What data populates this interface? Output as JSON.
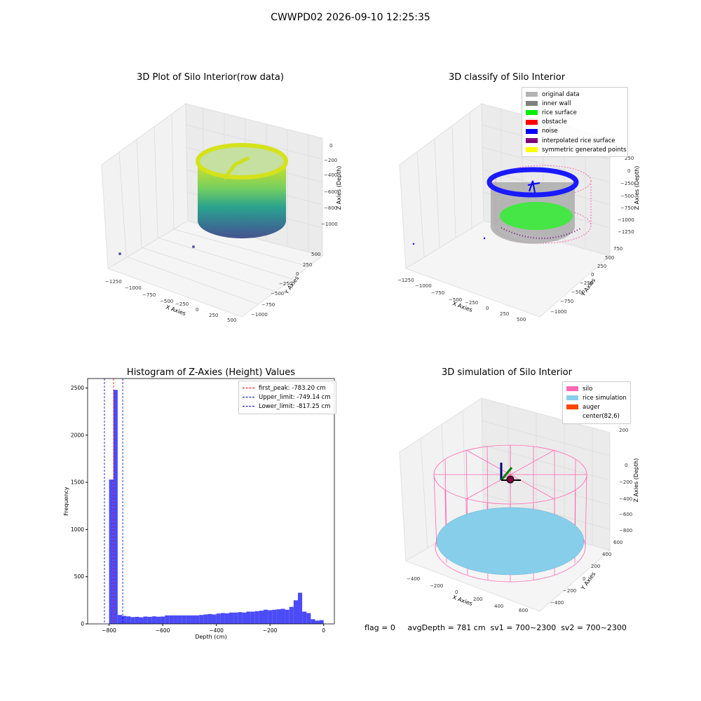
{
  "figure": {
    "suptitle": "CWWPD02 2026-09-10 12:25:35",
    "status_text": "flag = 0     avgDepth = 781 cm  sv1 = 700~2300  sv2 = 700~2300"
  },
  "colors": {
    "histogram_bars": "#4b4bf7",
    "first_peak_line": "#ff0000",
    "limit_lines": "#0000c0",
    "pane": "#f2f2f2",
    "grid": "#dcdcdc"
  },
  "panels": {
    "raw": {
      "title": "3D Plot of Silo Interior(row data)",
      "xlabel": "X Axies",
      "ylabel": "Y Axies",
      "zlabel": "Z Axies (Depth)",
      "xticks": [
        "−1250",
        "−1000",
        "−750",
        "−500",
        "−250",
        "0",
        "250",
        "500"
      ],
      "yticks": [
        "500",
        "250",
        "0",
        "−250",
        "−500",
        "−750",
        "−1000"
      ],
      "zticks": [
        "0",
        "−200",
        "−400",
        "−600",
        "−800",
        "−1000"
      ],
      "colormap": "viridis",
      "cylinder_color_top": "#d4e21a",
      "cylinder_color_bottom": "#3b528b"
    },
    "classify": {
      "title": "3D classify of Silo Interior",
      "xlabel": "X Axies",
      "ylabel": "Y Axies",
      "zlabel": "Z Axies (Depth)",
      "xticks": [
        "−1250",
        "−1000",
        "−750",
        "−500",
        "−250",
        "0",
        "250",
        "500"
      ],
      "yticks": [
        "750",
        "500",
        "250",
        "0",
        "−250",
        "−500",
        "−750",
        "−1000"
      ],
      "zticks": [
        "250",
        "0",
        "−250",
        "−500",
        "−750",
        "−1000",
        "−1250"
      ],
      "legend": [
        {
          "label": "original data",
          "color": "#b3b3b3"
        },
        {
          "label": "inner wall",
          "color": "#808080"
        },
        {
          "label": "rice surface",
          "color": "#00ee00"
        },
        {
          "label": "obstacle",
          "color": "#ff0000"
        },
        {
          "label": "noise",
          "color": "#0000ff"
        },
        {
          "label": "interpolated rice surface",
          "color": "#800080"
        },
        {
          "label": "symmetric generated points",
          "color": "#ffff00"
        }
      ]
    },
    "simulation": {
      "title": "3D simulation of Silo Interior",
      "xlabel": "X Axies",
      "ylabel": "Y Axies",
      "zlabel": "Z Axies (Depth)",
      "xticks": [
        "−400",
        "−200",
        "0",
        "200",
        "400",
        "600"
      ],
      "yticks": [
        "600",
        "400",
        "200",
        "0",
        "−200",
        "−400"
      ],
      "zticks": [
        "200",
        "0",
        "−200",
        "−400",
        "−600",
        "−800"
      ],
      "legend": [
        {
          "label": "silo",
          "color": "#ff69b4"
        },
        {
          "label": "rice simulation",
          "color": "#87ceeb"
        },
        {
          "label": "auger",
          "color": "#ff4500"
        },
        {
          "label": "center(82,6)",
          "color": "#ffffff"
        }
      ]
    }
  },
  "chart_data": {
    "type": "bar",
    "title": "Histogram of Z-Axies (Height) Values",
    "xlabel": "Depth (cm)",
    "ylabel": "Frequency",
    "xlim": [
      -880,
      40
    ],
    "ylim": [
      0,
      2600
    ],
    "xticks": [
      -800,
      -600,
      -400,
      -200,
      0
    ],
    "yticks": [
      0,
      500,
      1000,
      1500,
      2000,
      2500
    ],
    "bin_width": 16,
    "bins_start": [
      -800,
      -784,
      -768,
      -752,
      -736,
      -720,
      -704,
      -688,
      -672,
      -656,
      -640,
      -624,
      -608,
      -592,
      -576,
      -560,
      -544,
      -528,
      -512,
      -496,
      -480,
      -464,
      -448,
      -432,
      -416,
      -400,
      -384,
      -368,
      -352,
      -336,
      -320,
      -304,
      -288,
      -272,
      -256,
      -240,
      -224,
      -208,
      -192,
      -176,
      -160,
      -144,
      -128,
      -112,
      -96,
      -80,
      -64,
      -48,
      -32,
      -16
    ],
    "values": [
      1530,
      2480,
      95,
      85,
      80,
      72,
      75,
      70,
      78,
      75,
      80,
      76,
      78,
      90,
      90,
      90,
      90,
      90,
      90,
      90,
      90,
      95,
      100,
      105,
      100,
      110,
      115,
      112,
      120,
      120,
      125,
      120,
      130,
      130,
      135,
      140,
      150,
      145,
      150,
      155,
      160,
      150,
      180,
      250,
      330,
      130,
      115,
      50,
      35,
      40
    ],
    "vlines": [
      {
        "label": "first_peak: -783.20 cm",
        "x": -783.2,
        "color": "#ff0000"
      },
      {
        "label": "Upper_limit: -749.14 cm",
        "x": -749.14,
        "color": "#0000c0"
      },
      {
        "label": "Lower_limit: -817.25 cm",
        "x": -817.25,
        "color": "#0000c0"
      }
    ],
    "xtick_labels": [
      "−800",
      "−600",
      "−400",
      "−200",
      "0"
    ],
    "ytick_labels": [
      "0",
      "500",
      "1000",
      "1500",
      "2000",
      "2500"
    ]
  }
}
